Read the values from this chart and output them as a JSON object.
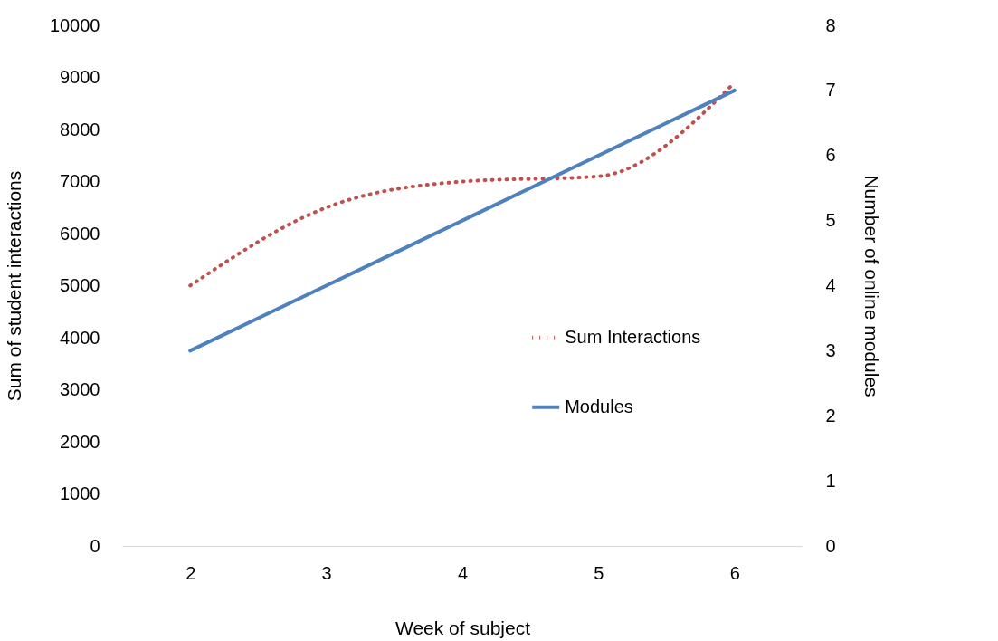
{
  "chart_data": {
    "type": "line",
    "xlabel": "Week of subject",
    "ylabel": "Sum of student interactions",
    "y2label": "Number of online modules",
    "categories": [
      "2",
      "3",
      "4",
      "5",
      "6"
    ],
    "series": [
      {
        "name": "Sum Interactions",
        "color": "#c0504d",
        "line_style": "dotted",
        "axis": "y",
        "values": [
          5000,
          6500,
          7000,
          7100,
          8900
        ]
      },
      {
        "name": "Modules",
        "color": "#4f81bd",
        "line_style": "solid",
        "axis": "y2",
        "values": [
          3,
          4,
          5,
          6,
          7
        ]
      }
    ],
    "ylim": [
      0,
      10000
    ],
    "yticks": [
      0,
      1000,
      2000,
      3000,
      4000,
      5000,
      6000,
      7000,
      8000,
      9000,
      10000
    ],
    "y2lim": [
      0,
      8
    ],
    "y2ticks": [
      0,
      1,
      2,
      3,
      4,
      5,
      6,
      7,
      8
    ],
    "legend": "right",
    "marker": "none"
  }
}
